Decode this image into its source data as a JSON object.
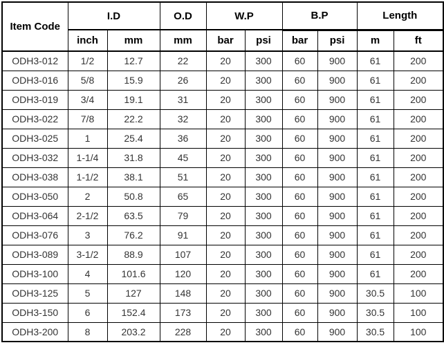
{
  "table": {
    "header": {
      "item_code": "Item Code",
      "groups": [
        {
          "label": "I.D",
          "colspan": 2
        },
        {
          "label": "O.D",
          "colspan": 1
        },
        {
          "label": "W.P",
          "colspan": 2
        },
        {
          "label": "B.P",
          "colspan": 2
        },
        {
          "label": "Length",
          "colspan": 2
        }
      ],
      "subheaders": [
        "inch",
        "mm",
        "mm",
        "bar",
        "psi",
        "bar",
        "psi",
        "m",
        "ft"
      ]
    },
    "rows": [
      [
        "ODH3-012",
        "1/2",
        "12.7",
        "22",
        "20",
        "300",
        "60",
        "900",
        "61",
        "200"
      ],
      [
        "ODH3-016",
        "5/8",
        "15.9",
        "26",
        "20",
        "300",
        "60",
        "900",
        "61",
        "200"
      ],
      [
        "ODH3-019",
        "3/4",
        "19.1",
        "31",
        "20",
        "300",
        "60",
        "900",
        "61",
        "200"
      ],
      [
        "ODH3-022",
        "7/8",
        "22.2",
        "32",
        "20",
        "300",
        "60",
        "900",
        "61",
        "200"
      ],
      [
        "ODH3-025",
        "1",
        "25.4",
        "36",
        "20",
        "300",
        "60",
        "900",
        "61",
        "200"
      ],
      [
        "ODH3-032",
        "1-1/4",
        "31.8",
        "45",
        "20",
        "300",
        "60",
        "900",
        "61",
        "200"
      ],
      [
        "ODH3-038",
        "1-1/2",
        "38.1",
        "51",
        "20",
        "300",
        "60",
        "900",
        "61",
        "200"
      ],
      [
        "ODH3-050",
        "2",
        "50.8",
        "65",
        "20",
        "300",
        "60",
        "900",
        "61",
        "200"
      ],
      [
        "ODH3-064",
        "2-1/2",
        "63.5",
        "79",
        "20",
        "300",
        "60",
        "900",
        "61",
        "200"
      ],
      [
        "ODH3-076",
        "3",
        "76.2",
        "91",
        "20",
        "300",
        "60",
        "900",
        "61",
        "200"
      ],
      [
        "ODH3-089",
        "3-1/2",
        "88.9",
        "107",
        "20",
        "300",
        "60",
        "900",
        "61",
        "200"
      ],
      [
        "ODH3-100",
        "4",
        "101.6",
        "120",
        "20",
        "300",
        "60",
        "900",
        "61",
        "200"
      ],
      [
        "ODH3-125",
        "5",
        "127",
        "148",
        "20",
        "300",
        "60",
        "900",
        "30.5",
        "100"
      ],
      [
        "ODH3-150",
        "6",
        "152.4",
        "173",
        "20",
        "300",
        "60",
        "900",
        "30.5",
        "100"
      ],
      [
        "ODH3-200",
        "8",
        "203.2",
        "228",
        "20",
        "300",
        "60",
        "900",
        "30.5",
        "100"
      ]
    ]
  },
  "colors": {
    "border": "#000000",
    "header_text": "#000000",
    "body_text": "#333333",
    "background": "#ffffff"
  }
}
